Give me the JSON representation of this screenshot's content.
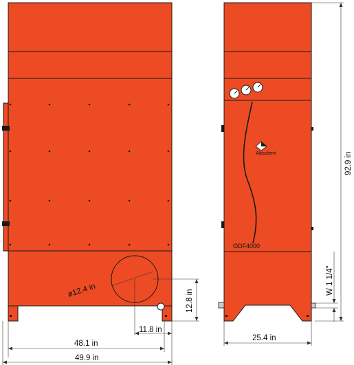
{
  "brand": "Absolent",
  "model": "ODF4000",
  "colors": {
    "body": "#EC4B24",
    "outline": "#1a1a1a",
    "dimension_lines": "#333333",
    "background": "#ffffff"
  },
  "dimensions": {
    "inlet_diameter": "ø12.4 in",
    "inlet_height": "12.8 in",
    "inlet_offset": "11.8 in",
    "inner_width": "48.1 in",
    "overall_width": "49.9 in",
    "side_depth": "25.4 in",
    "total_height": "92.9 in",
    "drain_connection": "W 1 1/4\""
  },
  "icons": {
    "gauge": "pressure-gauge-icon",
    "logo": "absolent-diamond-logo-icon"
  }
}
